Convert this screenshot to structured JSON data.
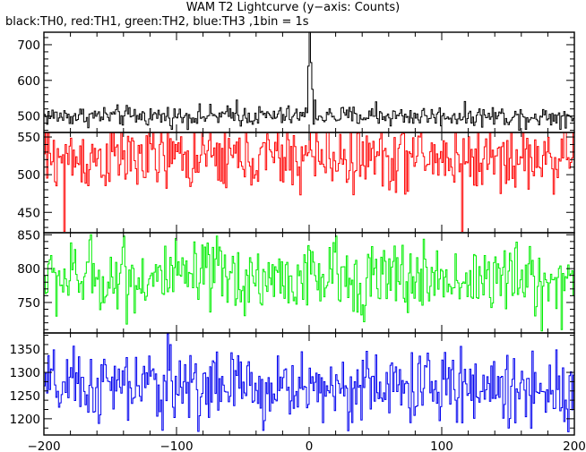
{
  "chart_data": {
    "type": "line",
    "title": "WAM T2 Lightcurve (y−axis: Counts)",
    "subtitle": "black:TH0, red:TH1, green:TH2, blue:TH3 ,1bin = 1s",
    "xlim": [
      -200,
      200
    ],
    "x_ticks": [
      -200,
      -100,
      0,
      100,
      200
    ],
    "x_tick_labels": [
      "−200",
      "−100",
      "0",
      "100",
      "200"
    ],
    "bin_seconds": 1,
    "panels": [
      {
        "series": "TH0",
        "color": "#000000",
        "ylim": [
          454,
          735
        ],
        "y_ticks": [
          500,
          600,
          700
        ],
        "mean": 500,
        "noise": 14,
        "features": [
          {
            "x": -55,
            "y": 545
          },
          {
            "x": -1,
            "y": 640
          },
          {
            "x": 0,
            "y": 735
          },
          {
            "x": 1,
            "y": 650
          },
          {
            "x": 2,
            "y": 575
          },
          {
            "x": 4,
            "y": 545
          },
          {
            "x": 50,
            "y": 540
          },
          {
            "x": 158,
            "y": 460
          }
        ]
      },
      {
        "series": "TH1",
        "color": "#ff0000",
        "ylim": [
          423,
          556
        ],
        "y_ticks": [
          450,
          500,
          550
        ],
        "mean": 522,
        "noise": 22,
        "features": [
          {
            "x": 0,
            "y": 556
          },
          {
            "x": -185,
            "y": 425
          },
          {
            "x": 115,
            "y": 425
          }
        ]
      },
      {
        "series": "TH2",
        "color": "#00ee00",
        "ylim": [
          705,
          853
        ],
        "y_ticks": [
          750,
          800,
          850
        ],
        "mean": 785,
        "noise": 26,
        "features": [
          {
            "x": -165,
            "y": 850
          },
          {
            "x": -140,
            "y": 848
          },
          {
            "x": -70,
            "y": 848
          },
          {
            "x": 20,
            "y": 848
          },
          {
            "x": 175,
            "y": 708
          },
          {
            "x": 190,
            "y": 710
          }
        ]
      },
      {
        "series": "TH3",
        "color": "#0000ee",
        "ylim": [
          1165,
          1385
        ],
        "y_ticks": [
          1200,
          1250,
          1300,
          1350
        ],
        "mean": 1268,
        "noise": 38,
        "features": [
          {
            "x": -107,
            "y": 1383
          },
          {
            "x": -105,
            "y": 1360
          },
          {
            "x": -35,
            "y": 1175
          },
          {
            "x": 150,
            "y": 1180
          },
          {
            "x": 195,
            "y": 1172
          }
        ]
      }
    ]
  }
}
